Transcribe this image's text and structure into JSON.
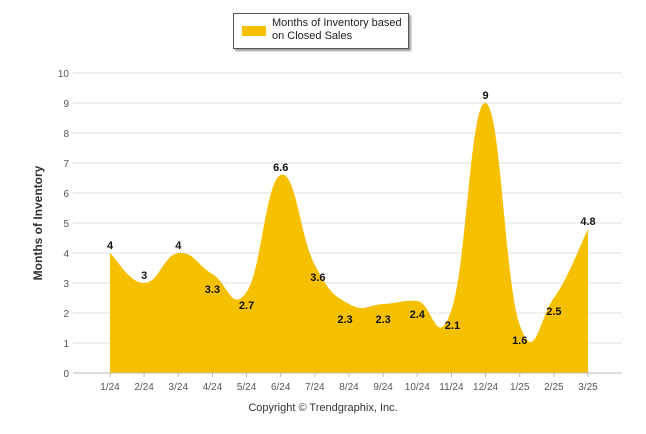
{
  "colors": {
    "series": "#f5c000",
    "grid": "#e2e2e2",
    "axis_text": "#555555",
    "title_text": "#333333"
  },
  "chart_data": {
    "type": "area",
    "categories": [
      "1/24",
      "2/24",
      "3/24",
      "4/24",
      "5/24",
      "6/24",
      "7/24",
      "8/24",
      "9/24",
      "10/24",
      "11/24",
      "12/24",
      "1/25",
      "2/25",
      "3/25"
    ],
    "series": [
      {
        "name": "Months of Inventory based on Closed Sales",
        "values": [
          4,
          3,
          4,
          3.3,
          2.7,
          6.6,
          3.6,
          2.3,
          2.3,
          2.4,
          2.1,
          9,
          1.6,
          2.5,
          4.8
        ]
      }
    ],
    "data_labels": [
      "4",
      "3",
      "4",
      "3.3",
      "2.7",
      "6.6",
      "3.6",
      "2.3",
      "2.3",
      "2.4",
      "2.1",
      "9",
      "1.6",
      "2.5",
      "4.8"
    ],
    "y_ticks": [
      "0",
      "1",
      "2",
      "3",
      "4",
      "5",
      "6",
      "7",
      "8",
      "9",
      "10"
    ],
    "ylim": [
      0,
      10
    ],
    "ylabel": "Months of Inventory",
    "xlabel": "",
    "grid": true,
    "legend_position": "top-center"
  },
  "legend": {
    "label": "Months of Inventory based on Closed Sales"
  },
  "footer": {
    "copyright": "Copyright © Trendgraphix, Inc."
  }
}
